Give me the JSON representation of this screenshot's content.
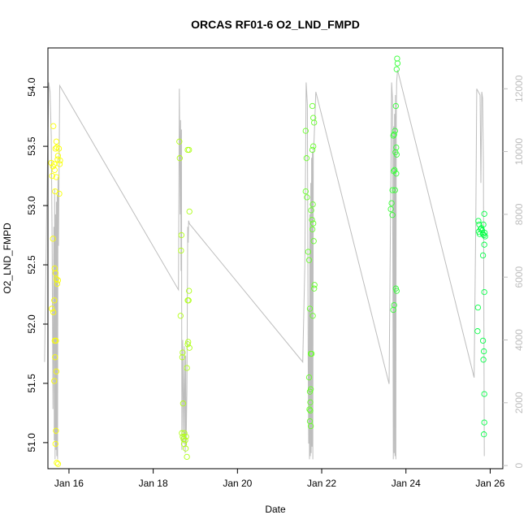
{
  "chart_data": {
    "type": "scatter",
    "title": "ORCAS RF01-6 O2_LND_FMPD",
    "xlabel": "Date",
    "ylabel": "O2_LND_FMPD",
    "xlim": [
      15.5,
      26.3
    ],
    "ylim": [
      50.78,
      54.33
    ],
    "y2lim": [
      -100,
      13300
    ],
    "x_ticks": [
      16,
      18,
      20,
      22,
      24,
      26
    ],
    "x_tick_labels": [
      "Jan 16",
      "Jan 18",
      "Jan 20",
      "Jan 22",
      "Jan 24",
      "Jan 26"
    ],
    "y_ticks": [
      51.0,
      51.5,
      52.0,
      52.5,
      53.0,
      53.5,
      54.0
    ],
    "y_tick_labels": [
      "51.0",
      "51.5",
      "52.0",
      "52.5",
      "53.0",
      "53.5",
      "54.0"
    ],
    "y2_ticks": [
      0,
      2000,
      4000,
      6000,
      8000,
      10000,
      12000
    ],
    "y2_tick_labels": [
      "0",
      "2000",
      "4000",
      "6000",
      "8000",
      "10000",
      "12000"
    ],
    "grid": false,
    "colors": {
      "altitude_line": "#bdbdbd",
      "points_start": "#ffff00",
      "points_end": "#00ff44",
      "axes": "#000000",
      "right_axis": "#bdbdbd"
    },
    "series": [
      {
        "values": [
          {
            "x": 15.58,
            "y": 53.36
          },
          {
            "x": 15.6,
            "y": 53.25
          },
          {
            "x": 15.62,
            "y": 53.33
          },
          {
            "x": 15.63,
            "y": 53.67
          },
          {
            "x": 15.65,
            "y": 53.35
          },
          {
            "x": 15.66,
            "y": 53.3
          },
          {
            "x": 15.68,
            "y": 53.48
          },
          {
            "x": 15.7,
            "y": 53.54
          },
          {
            "x": 15.71,
            "y": 53.49
          },
          {
            "x": 15.73,
            "y": 53.39
          },
          {
            "x": 15.74,
            "y": 53.42
          },
          {
            "x": 15.76,
            "y": 53.48
          },
          {
            "x": 15.78,
            "y": 53.35
          },
          {
            "x": 15.79,
            "y": 53.38
          },
          {
            "x": 15.67,
            "y": 53.12
          },
          {
            "x": 15.77,
            "y": 53.1
          },
          {
            "x": 15.7,
            "y": 53.24
          },
          {
            "x": 15.59,
            "y": 52.13
          },
          {
            "x": 15.62,
            "y": 52.72
          },
          {
            "x": 15.63,
            "y": 52.1
          },
          {
            "x": 15.65,
            "y": 52.2
          },
          {
            "x": 15.66,
            "y": 52.47
          },
          {
            "x": 15.68,
            "y": 52.43
          },
          {
            "x": 15.7,
            "y": 52.38
          },
          {
            "x": 15.72,
            "y": 52.34
          },
          {
            "x": 15.74,
            "y": 52.37
          },
          {
            "x": 15.66,
            "y": 51.86
          },
          {
            "x": 15.69,
            "y": 51.86
          },
          {
            "x": 15.67,
            "y": 51.72
          },
          {
            "x": 15.7,
            "y": 51.6
          },
          {
            "x": 15.65,
            "y": 51.52
          },
          {
            "x": 15.69,
            "y": 51.1
          },
          {
            "x": 15.71,
            "y": 50.83
          },
          {
            "x": 15.74,
            "y": 50.82
          },
          {
            "x": 15.68,
            "y": 50.99
          },
          {
            "x": 18.62,
            "y": 53.54
          },
          {
            "x": 18.63,
            "y": 53.4
          },
          {
            "x": 18.67,
            "y": 52.75
          },
          {
            "x": 18.66,
            "y": 52.62
          },
          {
            "x": 18.82,
            "y": 53.47
          },
          {
            "x": 18.85,
            "y": 53.47
          },
          {
            "x": 18.86,
            "y": 52.95
          },
          {
            "x": 18.85,
            "y": 52.28
          },
          {
            "x": 18.84,
            "y": 52.2
          },
          {
            "x": 18.82,
            "y": 52.2
          },
          {
            "x": 18.65,
            "y": 52.07
          },
          {
            "x": 18.83,
            "y": 51.85
          },
          {
            "x": 18.82,
            "y": 51.83
          },
          {
            "x": 18.86,
            "y": 51.8
          },
          {
            "x": 18.7,
            "y": 51.76
          },
          {
            "x": 18.69,
            "y": 51.72
          },
          {
            "x": 18.8,
            "y": 51.63
          },
          {
            "x": 18.71,
            "y": 51.33
          },
          {
            "x": 18.68,
            "y": 51.08
          },
          {
            "x": 18.7,
            "y": 51.05
          },
          {
            "x": 18.72,
            "y": 51.03
          },
          {
            "x": 18.74,
            "y": 51.08
          },
          {
            "x": 18.76,
            "y": 51.02
          },
          {
            "x": 18.78,
            "y": 51.05
          },
          {
            "x": 18.73,
            "y": 50.99
          },
          {
            "x": 18.8,
            "y": 50.88
          },
          {
            "x": 18.77,
            "y": 50.95
          },
          {
            "x": 21.62,
            "y": 53.63
          },
          {
            "x": 21.64,
            "y": 53.4
          },
          {
            "x": 21.62,
            "y": 53.12
          },
          {
            "x": 21.65,
            "y": 53.07
          },
          {
            "x": 21.68,
            "y": 52.61
          },
          {
            "x": 21.7,
            "y": 52.54
          },
          {
            "x": 21.72,
            "y": 52.13
          },
          {
            "x": 21.78,
            "y": 53.84
          },
          {
            "x": 21.8,
            "y": 53.74
          },
          {
            "x": 21.82,
            "y": 53.7
          },
          {
            "x": 21.78,
            "y": 53.47
          },
          {
            "x": 21.8,
            "y": 53.5
          },
          {
            "x": 21.75,
            "y": 52.96
          },
          {
            "x": 21.79,
            "y": 53.01
          },
          {
            "x": 21.77,
            "y": 52.88
          },
          {
            "x": 21.8,
            "y": 52.85
          },
          {
            "x": 21.78,
            "y": 52.8
          },
          {
            "x": 21.81,
            "y": 52.7
          },
          {
            "x": 21.83,
            "y": 52.33
          },
          {
            "x": 21.82,
            "y": 52.3
          },
          {
            "x": 21.79,
            "y": 52.07
          },
          {
            "x": 21.76,
            "y": 51.75
          },
          {
            "x": 21.74,
            "y": 51.75
          },
          {
            "x": 21.7,
            "y": 51.55
          },
          {
            "x": 21.72,
            "y": 51.43
          },
          {
            "x": 21.74,
            "y": 51.45
          },
          {
            "x": 21.73,
            "y": 51.34
          },
          {
            "x": 21.71,
            "y": 51.28
          },
          {
            "x": 21.73,
            "y": 51.27
          },
          {
            "x": 21.72,
            "y": 51.18
          },
          {
            "x": 21.74,
            "y": 51.14
          },
          {
            "x": 23.79,
            "y": 54.24
          },
          {
            "x": 23.8,
            "y": 54.2
          },
          {
            "x": 23.78,
            "y": 54.15
          },
          {
            "x": 23.76,
            "y": 53.84
          },
          {
            "x": 23.74,
            "y": 53.63
          },
          {
            "x": 23.72,
            "y": 53.6
          },
          {
            "x": 23.7,
            "y": 53.59
          },
          {
            "x": 23.77,
            "y": 53.49
          },
          {
            "x": 23.75,
            "y": 53.45
          },
          {
            "x": 23.78,
            "y": 53.43
          },
          {
            "x": 23.73,
            "y": 53.3
          },
          {
            "x": 23.71,
            "y": 53.29
          },
          {
            "x": 23.77,
            "y": 53.27
          },
          {
            "x": 23.74,
            "y": 53.13
          },
          {
            "x": 23.68,
            "y": 53.13
          },
          {
            "x": 23.66,
            "y": 53.02
          },
          {
            "x": 23.64,
            "y": 52.97
          },
          {
            "x": 23.68,
            "y": 52.92
          },
          {
            "x": 23.76,
            "y": 52.3
          },
          {
            "x": 23.78,
            "y": 52.28
          },
          {
            "x": 23.72,
            "y": 52.16
          },
          {
            "x": 23.7,
            "y": 52.12
          },
          {
            "x": 25.72,
            "y": 52.87
          },
          {
            "x": 25.74,
            "y": 52.84
          },
          {
            "x": 25.73,
            "y": 52.78
          },
          {
            "x": 25.75,
            "y": 52.76
          },
          {
            "x": 25.77,
            "y": 52.8
          },
          {
            "x": 25.79,
            "y": 52.81
          },
          {
            "x": 25.81,
            "y": 52.79
          },
          {
            "x": 25.83,
            "y": 52.76
          },
          {
            "x": 25.85,
            "y": 52.75
          },
          {
            "x": 25.87,
            "y": 52.77
          },
          {
            "x": 25.88,
            "y": 52.74
          },
          {
            "x": 25.86,
            "y": 52.67
          },
          {
            "x": 25.84,
            "y": 52.84
          },
          {
            "x": 25.86,
            "y": 52.93
          },
          {
            "x": 25.83,
            "y": 52.58
          },
          {
            "x": 25.86,
            "y": 52.27
          },
          {
            "x": 25.71,
            "y": 52.14
          },
          {
            "x": 25.7,
            "y": 51.94
          },
          {
            "x": 25.83,
            "y": 51.86
          },
          {
            "x": 25.85,
            "y": 51.77
          },
          {
            "x": 25.84,
            "y": 51.7
          },
          {
            "x": 25.86,
            "y": 51.41
          },
          {
            "x": 25.86,
            "y": 51.17
          },
          {
            "x": 25.85,
            "y": 51.07
          }
        ]
      },
      {
        "axis": "right",
        "type": "line",
        "values": [
          {
            "x": 15.42,
            "y": 3300
          },
          {
            "x": 15.48,
            "y": 9000
          },
          {
            "x": 15.52,
            "y": 12200
          },
          {
            "x": 15.55,
            "y": 11900
          },
          {
            "x": 15.58,
            "y": 10500
          },
          {
            "x": 15.6,
            "y": 7000
          },
          {
            "x": 15.62,
            "y": 1800
          },
          {
            "x": 15.64,
            "y": 7600
          },
          {
            "x": 15.65,
            "y": 800
          },
          {
            "x": 15.66,
            "y": 8800
          },
          {
            "x": 15.67,
            "y": 200
          },
          {
            "x": 15.68,
            "y": 8000
          },
          {
            "x": 15.69,
            "y": 500
          },
          {
            "x": 15.7,
            "y": 8400
          },
          {
            "x": 15.71,
            "y": 300
          },
          {
            "x": 15.72,
            "y": 8600
          },
          {
            "x": 15.73,
            "y": 200
          },
          {
            "x": 15.74,
            "y": 9200
          },
          {
            "x": 15.75,
            "y": 7000
          },
          {
            "x": 15.76,
            "y": 8600
          },
          {
            "x": 15.78,
            "y": 12100
          },
          {
            "x": 18.6,
            "y": 5600
          },
          {
            "x": 18.62,
            "y": 12000
          },
          {
            "x": 18.64,
            "y": 8000
          },
          {
            "x": 18.65,
            "y": 11000
          },
          {
            "x": 18.66,
            "y": 6200
          },
          {
            "x": 18.67,
            "y": 10700
          },
          {
            "x": 18.68,
            "y": 500
          },
          {
            "x": 18.7,
            "y": 4000
          },
          {
            "x": 18.72,
            "y": 700
          },
          {
            "x": 18.74,
            "y": 3800
          },
          {
            "x": 18.76,
            "y": 400
          },
          {
            "x": 18.77,
            "y": 3500
          },
          {
            "x": 18.78,
            "y": 600
          },
          {
            "x": 18.8,
            "y": 2400
          },
          {
            "x": 18.82,
            "y": 7600
          },
          {
            "x": 18.83,
            "y": 7100
          },
          {
            "x": 18.84,
            "y": 7800
          },
          {
            "x": 18.86,
            "y": 7700
          },
          {
            "x": 21.55,
            "y": 3300
          },
          {
            "x": 21.6,
            "y": 6400
          },
          {
            "x": 21.63,
            "y": 12200
          },
          {
            "x": 21.66,
            "y": 11500
          },
          {
            "x": 21.68,
            "y": 3200
          },
          {
            "x": 21.69,
            "y": 700
          },
          {
            "x": 21.7,
            "y": 5000
          },
          {
            "x": 21.71,
            "y": 200
          },
          {
            "x": 21.72,
            "y": 8000
          },
          {
            "x": 21.73,
            "y": 300
          },
          {
            "x": 21.74,
            "y": 9000
          },
          {
            "x": 21.75,
            "y": 400
          },
          {
            "x": 21.76,
            "y": 9800
          },
          {
            "x": 21.77,
            "y": 600
          },
          {
            "x": 21.78,
            "y": 10000
          },
          {
            "x": 21.79,
            "y": 200
          },
          {
            "x": 21.8,
            "y": 9900
          },
          {
            "x": 21.82,
            "y": 10400
          },
          {
            "x": 21.86,
            "y": 11900
          },
          {
            "x": 23.6,
            "y": 2600
          },
          {
            "x": 23.64,
            "y": 9000
          },
          {
            "x": 23.66,
            "y": 12200
          },
          {
            "x": 23.68,
            "y": 11700
          },
          {
            "x": 23.7,
            "y": 200
          },
          {
            "x": 23.71,
            "y": 10800
          },
          {
            "x": 23.72,
            "y": 400
          },
          {
            "x": 23.73,
            "y": 11200
          },
          {
            "x": 23.74,
            "y": 300
          },
          {
            "x": 23.75,
            "y": 11800
          },
          {
            "x": 23.76,
            "y": 200
          },
          {
            "x": 23.77,
            "y": 11000
          },
          {
            "x": 23.78,
            "y": 12200
          },
          {
            "x": 23.8,
            "y": 12600
          },
          {
            "x": 25.62,
            "y": 2800
          },
          {
            "x": 25.66,
            "y": 8000
          },
          {
            "x": 25.68,
            "y": 12000
          },
          {
            "x": 25.72,
            "y": 11900
          },
          {
            "x": 25.76,
            "y": 11800
          },
          {
            "x": 25.78,
            "y": 9000
          },
          {
            "x": 25.8,
            "y": 11900
          },
          {
            "x": 25.82,
            "y": 11700
          },
          {
            "x": 25.84,
            "y": 9600
          },
          {
            "x": 25.86,
            "y": 300
          }
        ]
      }
    ]
  }
}
